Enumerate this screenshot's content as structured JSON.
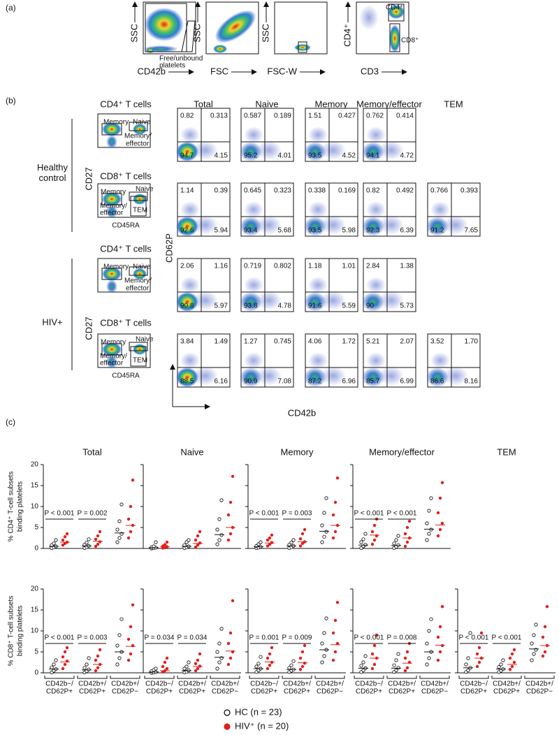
{
  "panel_a": {
    "label": "(a)",
    "plots": [
      {
        "y_label": "SSC",
        "x_label": "CD42b"
      },
      {
        "y_label": "SSC",
        "x_label": "FSC"
      },
      {
        "y_label": "SSC",
        "x_label": "FSC-W"
      },
      {
        "y_label": "CD4⁺",
        "x_label": "CD3"
      }
    ],
    "free_gate": [
      "Free/unbound",
      "platelets"
    ],
    "gate_cd4": "CD4⁺",
    "gate_cd8": "CD8⁺"
  },
  "panel_b": {
    "label": "(b)",
    "columns": [
      "Total",
      "Naive",
      "Memory",
      "Memory/effector",
      "TEM"
    ],
    "y_axis": "CD62P",
    "x_axis": "CD42b",
    "groups": [
      {
        "name": [
          "Healthy",
          "control"
        ],
        "y_label": "CD27",
        "x_label": "CD45RA",
        "subsets": [
          {
            "name": "CD4⁺ T cells",
            "gates": [
              "Memory",
              "Naive",
              "Memory/",
              "effector"
            ],
            "quadrants": [
              [
                "0.82",
                "0.313",
                "94.7",
                "4.15"
              ],
              [
                "0.587",
                "0.189",
                "95.2",
                "4.01"
              ],
              [
                "1.51",
                "0.427",
                "93.5",
                "4.52"
              ],
              [
                "0.762",
                "0.414",
                "94.1",
                "4.72"
              ]
            ]
          },
          {
            "name": "CD8⁺ T cells",
            "gates": [
              "Memory",
              "Naive",
              "Memory/",
              "effector",
              "TEM"
            ],
            "quadrants": [
              [
                "1.14",
                "0.39",
                "92.6",
                "5.94"
              ],
              [
                "0.645",
                "0.323",
                "93.4",
                "5.68"
              ],
              [
                "0.338",
                "0.169",
                "93.5",
                "5.98"
              ],
              [
                "0.82",
                "0.492",
                "92.3",
                "6.39"
              ],
              [
                "0.766",
                "0.393",
                "91.2",
                "7.65"
              ]
            ]
          }
        ]
      },
      {
        "name": [
          "HIV+"
        ],
        "y_label": "CD27",
        "x_label": "CD45RA",
        "subsets": [
          {
            "name": "CD4⁺ T cells",
            "gates": [
              "Memory",
              "Naive",
              "Memory/",
              "effector"
            ],
            "quadrants": [
              [
                "2.06",
                "1.16",
                "90.8",
                "5.97"
              ],
              [
                "0.719",
                "0.802",
                "93.8",
                "4.78"
              ],
              [
                "1.18",
                "1.01",
                "91.6",
                "5.59"
              ],
              [
                "2.84",
                "1.38",
                "90",
                "5.73"
              ]
            ]
          },
          {
            "name": "CD8⁺ T cells",
            "gates": [
              "Memory",
              "Naive",
              "Memory/",
              "effector",
              "TEM"
            ],
            "quadrants": [
              [
                "3.84",
                "1.49",
                "88.5",
                "6.16"
              ],
              [
                "1.27",
                "0.745",
                "90.9",
                "7.08"
              ],
              [
                "4.06",
                "1.72",
                "87.2",
                "6.96"
              ],
              [
                "5.21",
                "2.07",
                "85.7",
                "6.99"
              ],
              [
                "3.52",
                "1.70",
                "86.6",
                "8.16"
              ]
            ]
          }
        ]
      }
    ]
  },
  "panel_c": {
    "label": "(c)",
    "titles": [
      "Total",
      "Naive",
      "Memory",
      "Memory/effector",
      "TEM"
    ],
    "categories": [
      [
        "CD42b−/",
        "CD62P+"
      ],
      [
        "CD42b+/",
        "CD62P+"
      ],
      [
        "CD42b+/",
        "CD62P−"
      ]
    ],
    "ylim": [
      0,
      20
    ],
    "yticks": [
      0,
      5,
      10,
      15,
      20
    ],
    "legend": [
      {
        "name": "HC (n = 23)",
        "color": "#000000"
      },
      {
        "name": "HIV⁺ (n = 20)",
        "color": "#e0201b"
      }
    ],
    "rows": [
      {
        "y_label": [
          "% CD4⁺ T-cell subsets",
          "binding platelets"
        ],
        "panels": [
          {
            "groups": [
              {
                "hc": [
                  0.1,
                  0.3,
                  0.5,
                  0.8,
                  1.2,
                  2.0
                ],
                "hiv": [
                  0.8,
                  1.2,
                  1.5,
                  2.0,
                  2.8,
                  3.5
                ],
                "medians": [
                  0.5,
                  1.5
                ]
              },
              {
                "hc": [
                  0.1,
                  0.3,
                  0.6,
                  0.9,
                  1.4,
                  2.2
                ],
                "hiv": [
                  0.5,
                  1.0,
                  1.6,
                  2.2,
                  3.0,
                  4.0
                ],
                "medians": [
                  0.6,
                  1.7
                ]
              },
              {
                "hc": [
                  1.5,
                  2.5,
                  3.5,
                  4.5,
                  6.5,
                  10.5
                ],
                "hiv": [
                  2.5,
                  4.0,
                  5.5,
                  7.0,
                  10.0,
                  16.3
                ],
                "medians": [
                  3.7,
                  5.5
                ]
              }
            ],
            "pvalues": [
              "P < 0.001",
              "P = 0.002",
              null
            ]
          },
          {
            "groups": [
              {
                "hc": [
                  0,
                  0.1,
                  0.2,
                  0.3,
                  0.5,
                  1.5
                ],
                "hiv": [
                  0.1,
                  0.2,
                  0.4,
                  0.6,
                  0.9,
                  1.5
                ],
                "medians": [
                  0.2,
                  0.4
                ]
              },
              {
                "hc": [
                  0.1,
                  0.3,
                  0.5,
                  0.8,
                  1.5,
                  2.0
                ],
                "hiv": [
                  0.3,
                  0.8,
                  1.3,
                  2.0,
                  3.0,
                  4.0
                ],
                "medians": [
                  0.5,
                  1.2
                ]
              },
              {
                "hc": [
                  1.0,
                  2.0,
                  3.2,
                  4.5,
                  7.0,
                  11.5
                ],
                "hiv": [
                  2.0,
                  3.5,
                  5.0,
                  8.0,
                  11.0,
                  17.2
                ],
                "medians": [
                  3.3,
                  5.0
                ]
              }
            ]
          },
          {
            "groups": [
              {
                "hc": [
                  0.1,
                  0.2,
                  0.4,
                  0.6,
                  1.0,
                  1.5
                ],
                "hiv": [
                  0.6,
                  1.0,
                  1.4,
                  2.0,
                  2.5,
                  3.2
                ],
                "medians": [
                  0.4,
                  1.3
                ]
              },
              {
                "hc": [
                  0.1,
                  0.3,
                  0.6,
                  0.9,
                  1.4,
                  2.0
                ],
                "hiv": [
                  0.6,
                  1.2,
                  1.6,
                  2.3,
                  3.5,
                  4.5
                ],
                "medians": [
                  0.6,
                  1.6
                ]
              },
              {
                "hc": [
                  1.5,
                  2.8,
                  4.0,
                  5.5,
                  8.5,
                  12.0
                ],
                "hiv": [
                  2.5,
                  4.0,
                  5.5,
                  8.0,
                  11.0,
                  16.8
                ],
                "medians": [
                  4.1,
                  5.5
                ]
              }
            ],
            "pvalues": [
              "P < 0.001",
              "P = 0.003",
              null
            ]
          },
          {
            "groups": [
              {
                "hc": [
                  0.1,
                  0.5,
                  0.9,
                  1.5,
                  2.2,
                  3.5
                ],
                "hiv": [
                  1.0,
                  2.0,
                  3.0,
                  4.0,
                  5.5,
                  7.0
                ],
                "medians": [
                  0.8,
                  3.2
                ]
              },
              {
                "hc": [
                  0.1,
                  0.4,
                  0.8,
                  1.2,
                  2.0,
                  3.0
                ],
                "hiv": [
                  0.5,
                  1.5,
                  2.5,
                  3.5,
                  5.0,
                  6.5
                ],
                "medians": [
                  0.7,
                  2.5
                ]
              },
              {
                "hc": [
                  2.0,
                  3.5,
                  4.5,
                  6.0,
                  9.0,
                  12.0
                ],
                "hiv": [
                  3.0,
                  4.5,
                  6.0,
                  8.5,
                  12.0,
                  15.7
                ],
                "medians": [
                  4.6,
                  5.6
                ]
              }
            ],
            "pvalues": [
              "P < 0.001",
              "P < 0.001",
              null
            ]
          }
        ]
      },
      {
        "y_label": [
          "% CD8⁺ T-cell subsets",
          "binding platelets"
        ],
        "panels": [
          {
            "groups": [
              {
                "hc": [
                  0.1,
                  0.5,
                  0.9,
                  1.3,
                  2.0,
                  3.0
                ],
                "hiv": [
                  1.0,
                  2.0,
                  2.8,
                  3.8,
                  5.0,
                  6.0
                ],
                "medians": [
                  0.9,
                  2.6
                ]
              },
              {
                "hc": [
                  0.1,
                  0.4,
                  0.8,
                  1.2,
                  2.0,
                  3.5
                ],
                "hiv": [
                  0.5,
                  1.2,
                  2.0,
                  3.0,
                  4.0,
                  5.5
                ],
                "medians": [
                  0.7,
                  2.0
                ]
              },
              {
                "hc": [
                  2.0,
                  3.5,
                  5.0,
                  6.5,
                  9.0,
                  12.8
                ],
                "hiv": [
                  3.0,
                  4.5,
                  6.5,
                  8.0,
                  11.0,
                  16.2
                ],
                "medians": [
                  5.0,
                  6.3
                ]
              }
            ],
            "pvalues": [
              "P < 0.001",
              "P = 0.003",
              null
            ]
          },
          {
            "groups": [
              {
                "hc": [
                  0,
                  0.1,
                  0.2,
                  0.4,
                  0.7,
                  1.0
                ],
                "hiv": [
                  0.2,
                  0.5,
                  1.0,
                  1.5,
                  2.5,
                  3.5
                ],
                "medians": [
                  0.2,
                  0.5
                ]
              },
              {
                "hc": [
                  0.1,
                  0.3,
                  0.6,
                  1.0,
                  1.5,
                  2.5
                ],
                "hiv": [
                  0.5,
                  1.0,
                  1.6,
                  2.2,
                  3.0,
                  4.5
                ],
                "medians": [
                  0.5,
                  1.5
                ]
              },
              {
                "hc": [
                  1.0,
                  2.5,
                  3.5,
                  5.0,
                  7.0,
                  10.5
                ],
                "hiv": [
                  2.0,
                  3.5,
                  5.0,
                  7.0,
                  9.5,
                  17.2
                ],
                "medians": [
                  3.7,
                  5.2
                ]
              }
            ],
            "pvalues": [
              "P = 0.034",
              "P = 0.034",
              null
            ]
          },
          {
            "groups": [
              {
                "hc": [
                  0.2,
                  0.6,
                  1.0,
                  1.5,
                  2.2,
                  3.8
                ],
                "hiv": [
                  1.0,
                  1.8,
                  2.5,
                  3.5,
                  4.5,
                  6.0
                ],
                "medians": [
                  1.0,
                  2.6
                ]
              },
              {
                "hc": [
                  0.2,
                  0.5,
                  0.8,
                  1.2,
                  1.8,
                  2.8
                ],
                "hiv": [
                  0.8,
                  1.5,
                  2.3,
                  3.5,
                  5.0,
                  6.5
                ],
                "medians": [
                  0.8,
                  2.4
                ]
              },
              {
                "hc": [
                  2.5,
                  4.0,
                  5.5,
                  7.0,
                  9.5,
                  13.0
                ],
                "hiv": [
                  3.0,
                  5.0,
                  7.0,
                  9.5,
                  12.5,
                  16.8
                ],
                "medians": [
                  5.5,
                  6.7
                ]
              }
            ],
            "pvalues": [
              "P = 0.001",
              "P = 0.009",
              null
            ]
          },
          {
            "groups": [
              {
                "hc": [
                  0.2,
                  0.6,
                  1.1,
                  1.7,
                  2.5,
                  4.0
                ],
                "hiv": [
                  1.0,
                  2.0,
                  3.5,
                  4.5,
                  6.5,
                  9.0
                ],
                "medians": [
                  1.1,
                  3.5
                ]
              },
              {
                "hc": [
                  0.2,
                  0.6,
                  1.2,
                  1.8,
                  3.0,
                  4.5
                ],
                "hiv": [
                  0.5,
                  1.2,
                  2.5,
                  3.5,
                  5.0,
                  7.0
                ],
                "medians": [
                  1.1,
                  2.3
                ]
              },
              {
                "hc": [
                  2.0,
                  3.5,
                  5.0,
                  7.0,
                  10.0,
                  12.8
                ],
                "hiv": [
                  3.0,
                  5.0,
                  6.5,
                  8.5,
                  11.0,
                  15.8
                ],
                "medians": [
                  5.0,
                  6.6
                ]
              }
            ],
            "pvalues": [
              "P < 0.001",
              "P = 0.008",
              null
            ]
          },
          {
            "groups": [
              {
                "hc": [
                  0.2,
                  0.6,
                  1.2,
                  2.0,
                  3.5,
                  9.5
                ],
                "hiv": [
                  1.5,
                  2.5,
                  3.5,
                  4.5,
                  6.0,
                  9.5
                ],
                "medians": [
                  1.2,
                  3.5
                ]
              },
              {
                "hc": [
                  0.2,
                  0.5,
                  0.9,
                  1.4,
                  2.0,
                  3.0
                ],
                "hiv": [
                  0.8,
                  1.5,
                  2.5,
                  3.5,
                  4.5,
                  5.5
                ],
                "medians": [
                  0.9,
                  2.0
                ]
              },
              {
                "hc": [
                  3.0,
                  4.5,
                  5.5,
                  7.0,
                  9.0,
                  11.5
                ],
                "hiv": [
                  4.0,
                  5.0,
                  6.5,
                  8.5,
                  11.0,
                  15.8
                ],
                "medians": [
                  5.7,
                  6.5
                ]
              }
            ],
            "pvalues": [
              "P < 0.001",
              "P < 0.001",
              null
            ]
          }
        ]
      }
    ]
  }
}
